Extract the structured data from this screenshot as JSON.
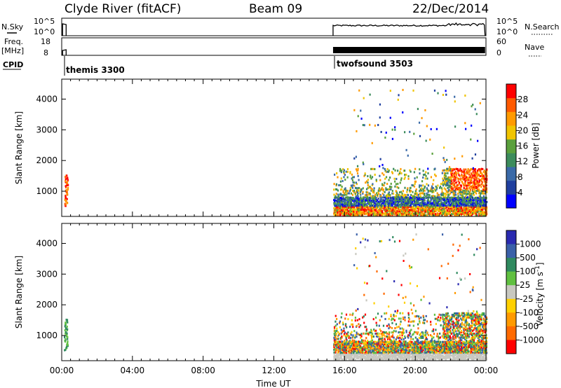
{
  "header": {
    "station": "Clyde River (fitACF)",
    "beam": "Beam 09",
    "date": "22/Dec/2014"
  },
  "params": {
    "nsky_label": "N.Sky",
    "nsky_ticks": [
      "10^5",
      "10^0"
    ],
    "nsearch_label": "N.Search",
    "nsearch_ticks": [
      "10^5",
      "10^0"
    ],
    "freq_label": "Freq.",
    "freq_unit": "[MHz]",
    "freq_ticks": [
      "18",
      "8"
    ],
    "nave_label": "Nave",
    "nave_ticks": [
      "60",
      "0"
    ],
    "cpid_label": "CPID",
    "cpid_segments": [
      {
        "name": "themis 3300",
        "start_h": 0.0,
        "end_h": 0.3
      },
      {
        "name": "twofsound 3503",
        "start_h": 15.35,
        "end_h": 24.0
      }
    ]
  },
  "colors": {
    "power": [
      "#0000ff",
      "#1f3f9f",
      "#3a6aa8",
      "#3c8c5c",
      "#5aa03c",
      "#f0c400",
      "#ff9a00",
      "#ff5a00",
      "#ff0000"
    ],
    "velocity": [
      "#2a2ab0",
      "#3a60a8",
      "#2f8a5f",
      "#60c040",
      "#c8c8c0",
      "#ffd000",
      "#ff9a00",
      "#ff6a00",
      "#ff0000"
    ]
  },
  "chart_data": [
    {
      "type": "heatmap",
      "name": "power",
      "xlabel": "",
      "ylabel": "Slant Range [km]",
      "xlim": [
        0,
        24
      ],
      "ylim": [
        180,
        4650
      ],
      "y_ticks": [
        1000,
        2000,
        3000,
        4000
      ],
      "colorbar": {
        "label": "Power [dB]",
        "range": [
          0,
          32
        ],
        "ticks": [
          4,
          8,
          12,
          16,
          20,
          24,
          28
        ]
      }
    },
    {
      "type": "heatmap",
      "name": "velocity",
      "xlabel": "Time UT",
      "ylabel": "Slant Range [km]",
      "xlim": [
        0,
        24
      ],
      "ylim": [
        180,
        4650
      ],
      "x_ticks": [
        "00:00",
        "04:00",
        "08:00",
        "12:00",
        "16:00",
        "20:00",
        "00:00"
      ],
      "y_ticks": [
        1000,
        2000,
        3000,
        4000
      ],
      "colorbar": {
        "label": "Velocity [m s^-1]",
        "ticks": [
          "1000",
          "500",
          "100",
          "25",
          "-25",
          "-100",
          "-500",
          "-1000"
        ]
      }
    }
  ]
}
